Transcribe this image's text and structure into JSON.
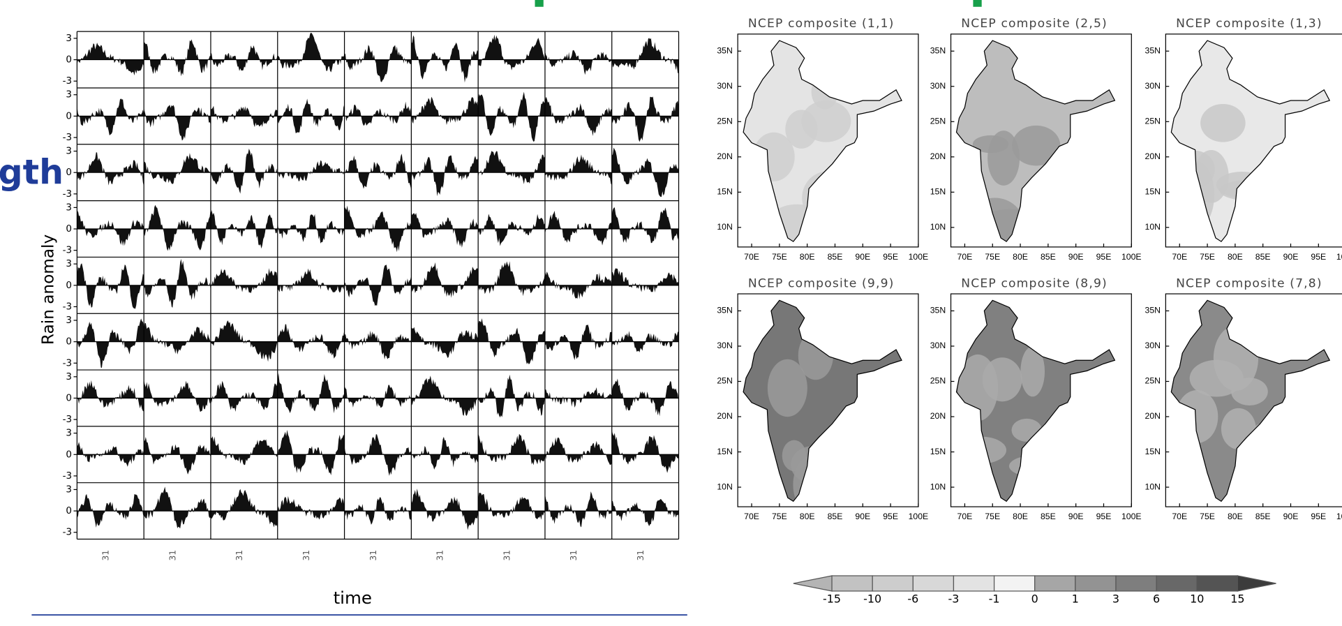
{
  "title_fragment": "gth",
  "left_panel": {
    "y_label": "Rain anomaly",
    "x_label": "time",
    "yticks": [
      3,
      0,
      -3
    ],
    "xtick": 31
  },
  "maps": [
    {
      "title": "NCEP composite  (1,1)"
    },
    {
      "title": "NCEP composite  (2,5)"
    },
    {
      "title": "NCEP composite  (1,3)"
    },
    {
      "title": "NCEP composite  (9,9)"
    },
    {
      "title": "NCEP composite  (8,9)"
    },
    {
      "title": "NCEP composite  (7,8)"
    }
  ],
  "map_axes": {
    "lat": [
      "35N",
      "30N",
      "25N",
      "20N",
      "15N",
      "10N"
    ],
    "lon": [
      "70E",
      "75E",
      "80E",
      "85E",
      "90E",
      "95E",
      "100E"
    ]
  },
  "colorbar": {
    "ticks": [
      -15,
      -10,
      -6,
      -3,
      -1,
      0,
      1,
      3,
      6,
      10,
      15
    ],
    "colors": [
      "#b4b4b4",
      "#c2c2c2",
      "#cdcdcd",
      "#d8d8d8",
      "#e3e3e3",
      "#f3f3f3",
      "#a6a6a6",
      "#939393",
      "#7e7e7e",
      "#686868",
      "#545454",
      "#3c3c3c"
    ]
  }
}
